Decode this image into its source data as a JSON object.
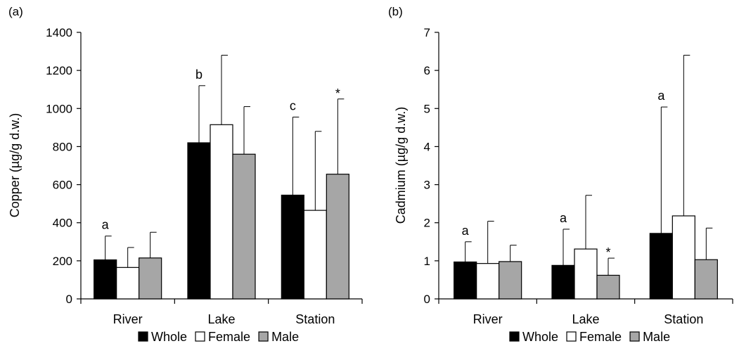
{
  "chart_data": [
    {
      "panel_label": "(a)",
      "type": "bar",
      "ylabel": "Copper (µg/g d.w.)",
      "xlabel": "",
      "ylim": [
        0,
        1400
      ],
      "yticks": [
        0,
        200,
        400,
        600,
        800,
        1000,
        1200,
        1400
      ],
      "categories": [
        "River",
        "Lake",
        "Station"
      ],
      "series": [
        {
          "name": "Whole",
          "color": "#000000",
          "values": [
            205,
            820,
            545
          ],
          "error": [
            125,
            300,
            410
          ]
        },
        {
          "name": "Female",
          "color": "#ffffff",
          "values": [
            165,
            915,
            465
          ],
          "error": [
            105,
            365,
            415
          ]
        },
        {
          "name": "Male",
          "color": "#a6a6a6",
          "values": [
            215,
            760,
            655
          ],
          "error": [
            135,
            250,
            395
          ]
        }
      ],
      "annotations": [
        {
          "category": 0,
          "series": 0,
          "text": "a"
        },
        {
          "category": 1,
          "series": 0,
          "text": "b"
        },
        {
          "category": 2,
          "series": 0,
          "text": "c"
        },
        {
          "category": 2,
          "series": 2,
          "text": "*"
        }
      ],
      "legend": {
        "placement": "bottom",
        "entries": [
          "Whole",
          "Female",
          "Male"
        ]
      },
      "grid": false
    },
    {
      "panel_label": "(b)",
      "type": "bar",
      "ylabel": "Cadmium (µg/g d.w.)",
      "xlabel": "",
      "ylim": [
        0,
        7
      ],
      "yticks": [
        0,
        1,
        2,
        3,
        4,
        5,
        6,
        7
      ],
      "categories": [
        "River",
        "Lake",
        "Station"
      ],
      "series": [
        {
          "name": "Whole",
          "color": "#000000",
          "values": [
            0.97,
            0.88,
            1.72
          ],
          "error": [
            0.53,
            0.95,
            3.32
          ]
        },
        {
          "name": "Female",
          "color": "#ffffff",
          "values": [
            0.93,
            1.31,
            2.18
          ],
          "error": [
            1.11,
            1.41,
            4.22
          ]
        },
        {
          "name": "Male",
          "color": "#a6a6a6",
          "values": [
            0.98,
            0.62,
            1.03
          ],
          "error": [
            0.43,
            0.45,
            0.83
          ]
        }
      ],
      "annotations": [
        {
          "category": 0,
          "series": 0,
          "text": "a"
        },
        {
          "category": 1,
          "series": 0,
          "text": "a"
        },
        {
          "category": 2,
          "series": 0,
          "text": "a"
        },
        {
          "category": 1,
          "series": 2,
          "text": "*"
        }
      ],
      "legend": {
        "placement": "bottom",
        "entries": [
          "Whole",
          "Female",
          "Male"
        ]
      },
      "grid": false
    }
  ]
}
